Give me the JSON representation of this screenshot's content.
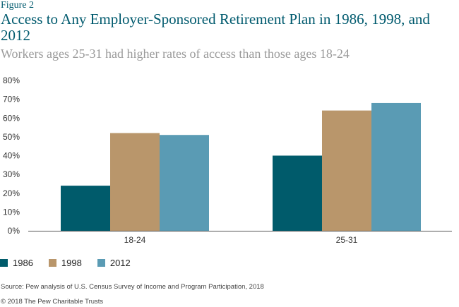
{
  "figure_label": "Figure 2",
  "source": "Source: Pew analysis of U.S. Census Survey of Income and Program Participation, 2018",
  "copyright": "© 2018 The Pew Charitable Trusts",
  "colors": {
    "1986": "#005b6b",
    "1998": "#b9966b",
    "2012": "#5a9bb4",
    "title": "#005a6e",
    "subtitle": "#9a9a9a"
  },
  "chart_data": {
    "type": "bar",
    "title": "Access to Any Employer-Sponsored Retirement Plan in 1986, 1998, and 2012",
    "subtitle": "Workers ages 25-31 had higher rates of access than those ages 18-24",
    "categories": [
      "18-24",
      "25-31"
    ],
    "series": [
      {
        "name": "1986",
        "values": [
          24,
          40
        ]
      },
      {
        "name": "1998",
        "values": [
          52,
          64
        ]
      },
      {
        "name": "2012",
        "values": [
          51,
          68
        ]
      }
    ],
    "ylim": [
      0,
      80
    ],
    "yticks": [
      "0%",
      "10%",
      "20%",
      "30%",
      "40%",
      "50%",
      "60%",
      "70%",
      "80%"
    ],
    "xlabel": "",
    "ylabel": "",
    "grid": false,
    "legend_position": "bottom-left"
  }
}
